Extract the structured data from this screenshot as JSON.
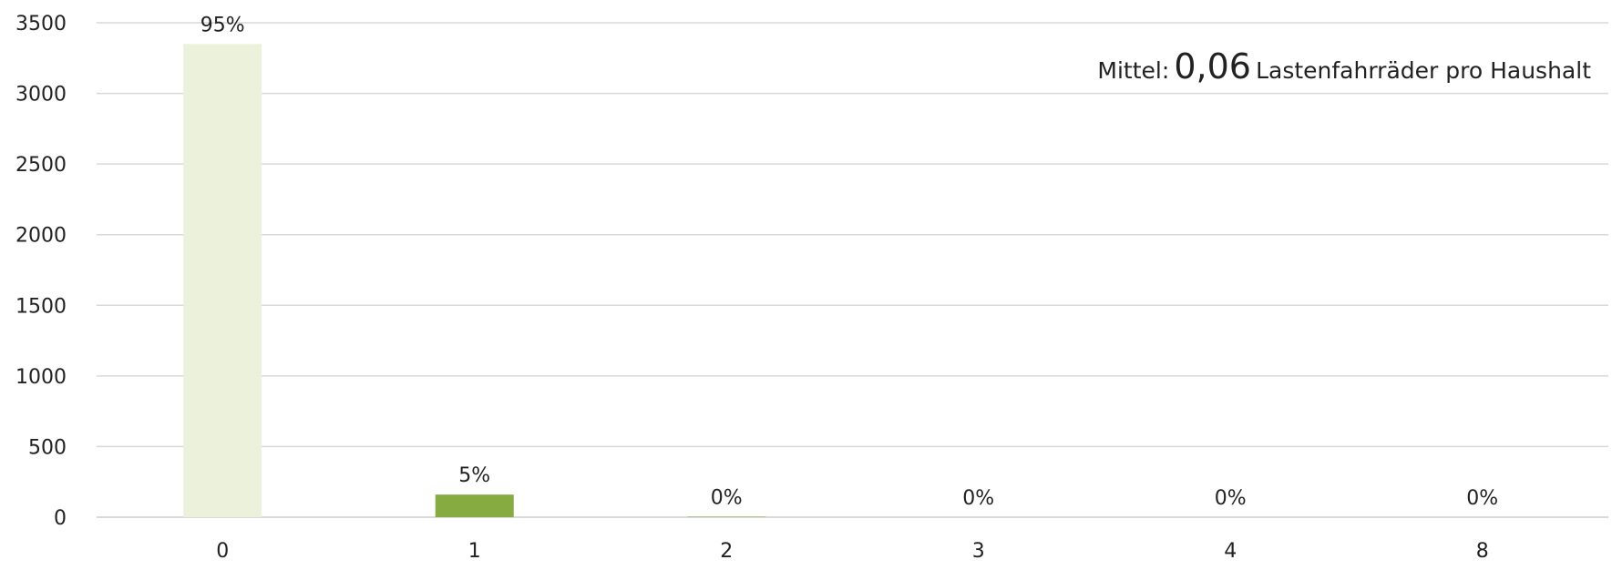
{
  "chart_data": {
    "type": "bar",
    "categories": [
      "0",
      "1",
      "2",
      "3",
      "4",
      "8"
    ],
    "values": [
      3350,
      160,
      3,
      0,
      0,
      0
    ],
    "data_labels": [
      "95%",
      "5%",
      "0%",
      "0%",
      "0%",
      "0%"
    ],
    "bar_colors": [
      "#ebf1da",
      "#86ac41",
      "#86ac41",
      "#86ac41",
      "#86ac41",
      "#86ac41"
    ],
    "ylim": [
      0,
      3500
    ],
    "yticks": [
      0,
      500,
      1000,
      1500,
      2000,
      2500,
      3000,
      3500
    ],
    "grid": true,
    "grid_color": "#d9d9d9",
    "title": "",
    "xlabel": "",
    "ylabel": "",
    "annotation": {
      "prefix": "Mittel:",
      "value": "0,06",
      "suffix": "Lastenfahrräder pro Haushalt"
    }
  }
}
